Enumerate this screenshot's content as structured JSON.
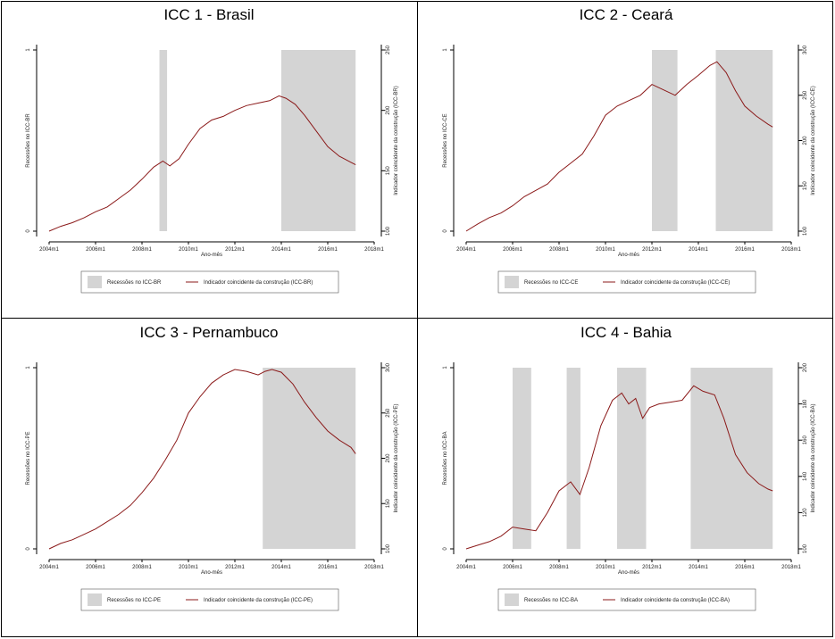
{
  "colors": {
    "recession_fill": "#d4d4d4",
    "line": "#8b1a1a",
    "axis": "#000000",
    "plot_bg": "#ffffff"
  },
  "chart_data": [
    {
      "type": "line",
      "title": "ICC 1 - Brasil",
      "xlabel": "Ano-mês",
      "ylabel_left": "Recessões no ICC-BR",
      "ylabel_right": "Indicador coincidente da construção (ICC-BR)",
      "x_ticks": [
        "2004m1",
        "2006m1",
        "2008m1",
        "2010m1",
        "2012m1",
        "2014m1",
        "2016m1",
        "2018m1"
      ],
      "left_ticks": [
        "0",
        "1"
      ],
      "right_ticks": [
        "100",
        "150",
        "200",
        "250"
      ],
      "ylim_right": [
        100,
        250
      ],
      "xlim": [
        2004.0,
        2018.0
      ],
      "recessions": [
        [
          2008.75,
          2009.08
        ],
        [
          2014.0,
          2017.2
        ]
      ],
      "legend": [
        "Recessões no ICC-BR",
        "Indicador coincidente da construção (ICC-BR)"
      ],
      "series": [
        {
          "x": [
            2004.0,
            2004.5,
            2005.0,
            2005.5,
            2006.0,
            2006.5,
            2007.0,
            2007.5,
            2008.0,
            2008.5,
            2008.9,
            2009.2,
            2009.6,
            2010.0,
            2010.5,
            2011.0,
            2011.5,
            2012.0,
            2012.5,
            2013.0,
            2013.5,
            2013.9,
            2014.2,
            2014.6,
            2015.0,
            2015.5,
            2016.0,
            2016.5,
            2017.0,
            2017.2
          ],
          "y": [
            100,
            104,
            107,
            111,
            116,
            120,
            127,
            134,
            143,
            153,
            158,
            154,
            160,
            172,
            185,
            192,
            195,
            200,
            204,
            206,
            208,
            212,
            210,
            205,
            196,
            183,
            170,
            162,
            157,
            155
          ]
        }
      ]
    },
    {
      "type": "line",
      "title": "ICC 2 - Ceará",
      "xlabel": "Ano-mês",
      "ylabel_left": "Recessões no ICC-CE",
      "ylabel_right": "Indicador coincidente da construção (ICC-CE)",
      "x_ticks": [
        "2004m1",
        "2006m1",
        "2008m1",
        "2010m1",
        "2012m1",
        "2014m1",
        "2016m1",
        "2018m1"
      ],
      "left_ticks": [
        "0",
        "1"
      ],
      "right_ticks": [
        "100",
        "150",
        "200",
        "250",
        "300"
      ],
      "ylim_right": [
        100,
        300
      ],
      "xlim": [
        2004.0,
        2018.0
      ],
      "recessions": [
        [
          2012.0,
          2013.1
        ],
        [
          2014.75,
          2017.2
        ]
      ],
      "legend": [
        "Recessões no ICC-CE",
        "Indicador coincidente da construção (ICC-CE)"
      ],
      "series": [
        {
          "x": [
            2004.0,
            2004.5,
            2005.0,
            2005.5,
            2006.0,
            2006.5,
            2007.0,
            2007.5,
            2008.0,
            2008.5,
            2009.0,
            2009.5,
            2010.0,
            2010.5,
            2011.0,
            2011.5,
            2012.0,
            2012.5,
            2013.0,
            2013.5,
            2014.0,
            2014.5,
            2014.8,
            2015.2,
            2015.6,
            2016.0,
            2016.5,
            2017.0,
            2017.2
          ],
          "y": [
            100,
            108,
            115,
            120,
            128,
            138,
            145,
            152,
            165,
            175,
            185,
            205,
            228,
            238,
            244,
            250,
            262,
            256,
            250,
            262,
            272,
            283,
            287,
            275,
            255,
            238,
            227,
            218,
            215
          ]
        }
      ]
    },
    {
      "type": "line",
      "title": "ICC 3 - Pernambuco",
      "xlabel": "Ano-mês",
      "ylabel_left": "Recessões no ICC-PE",
      "ylabel_right": "Indicador coincidente da construção (ICC-PE)",
      "x_ticks": [
        "2004m1",
        "2006m1",
        "2008m1",
        "2010m1",
        "2012m1",
        "2014m1",
        "2016m1",
        "2018m1"
      ],
      "left_ticks": [
        "0",
        "1"
      ],
      "right_ticks": [
        "100",
        "150",
        "200",
        "250",
        "300"
      ],
      "ylim_right": [
        100,
        300
      ],
      "xlim": [
        2004.0,
        2018.0
      ],
      "recessions": [
        [
          2013.2,
          2017.2
        ]
      ],
      "legend": [
        "Recessões no ICC-PE",
        "Indicador coincidente da construção (ICC-PE)"
      ],
      "series": [
        {
          "x": [
            2004.0,
            2004.5,
            2005.0,
            2005.5,
            2006.0,
            2006.5,
            2007.0,
            2007.5,
            2008.0,
            2008.5,
            2009.0,
            2009.5,
            2010.0,
            2010.5,
            2011.0,
            2011.5,
            2012.0,
            2012.5,
            2013.0,
            2013.3,
            2013.6,
            2014.0,
            2014.5,
            2015.0,
            2015.5,
            2016.0,
            2016.5,
            2017.0,
            2017.2
          ],
          "y": [
            100,
            106,
            110,
            116,
            122,
            130,
            138,
            148,
            162,
            178,
            198,
            220,
            250,
            268,
            283,
            292,
            298,
            296,
            292,
            296,
            298,
            295,
            282,
            262,
            245,
            230,
            220,
            212,
            205
          ]
        }
      ]
    },
    {
      "type": "line",
      "title": "ICC 4 - Bahia",
      "xlabel": "Ano-mês",
      "ylabel_left": "Recessões no ICC-BA",
      "ylabel_right": "Indicador coincidente da construção (ICC-BA)",
      "x_ticks": [
        "2004m1",
        "2006m1",
        "2008m1",
        "2010m1",
        "2012m1",
        "2014m1",
        "2016m1",
        "2018m1"
      ],
      "left_ticks": [
        "0",
        "1"
      ],
      "right_ticks": [
        "100",
        "120",
        "140",
        "160",
        "180",
        "200"
      ],
      "ylim_right": [
        100,
        200
      ],
      "xlim": [
        2004.0,
        2018.0
      ],
      "recessions": [
        [
          2006.0,
          2006.8
        ],
        [
          2008.33,
          2008.92
        ],
        [
          2010.5,
          2011.75
        ],
        [
          2013.67,
          2017.2
        ]
      ],
      "legend": [
        "Recessões no ICC-BA",
        "Indicador coincidente da construção (ICC-BA)"
      ],
      "series": [
        {
          "x": [
            2004.0,
            2004.5,
            2005.0,
            2005.5,
            2006.0,
            2006.5,
            2007.0,
            2007.5,
            2008.0,
            2008.5,
            2008.9,
            2009.3,
            2009.8,
            2010.3,
            2010.7,
            2011.0,
            2011.3,
            2011.6,
            2011.9,
            2012.3,
            2012.8,
            2013.3,
            2013.8,
            2014.2,
            2014.7,
            2015.1,
            2015.6,
            2016.1,
            2016.6,
            2017.0,
            2017.2
          ],
          "y": [
            100,
            102,
            104,
            107,
            112,
            111,
            110,
            120,
            132,
            137,
            130,
            145,
            168,
            182,
            186,
            180,
            183,
            172,
            178,
            180,
            181,
            182,
            190,
            187,
            185,
            172,
            152,
            142,
            136,
            133,
            132
          ]
        }
      ]
    }
  ]
}
